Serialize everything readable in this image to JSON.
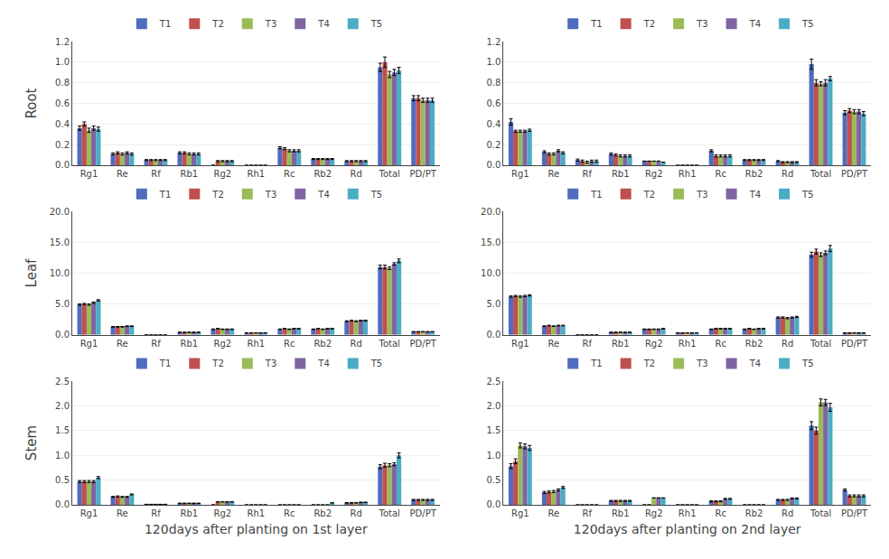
{
  "chart_data": [
    {
      "type": "bar",
      "categories": [
        "Rg1",
        "Re",
        "Rf",
        "Rb1",
        "Rg2",
        "Rh1",
        "Rc",
        "Rb2",
        "Rd",
        "Total",
        "PD/PT"
      ],
      "ylabel": "Root",
      "series": [
        {
          "name": "T1",
          "color": "#4f6cbe",
          "values": [
            0.36,
            0.11,
            0.05,
            0.12,
            0.0,
            0.0,
            0.17,
            0.06,
            0.04,
            0.95,
            0.65
          ],
          "errors": [
            0.02,
            0.01,
            0.005,
            0.01,
            0.0,
            0.0,
            0.01,
            0.005,
            0.005,
            0.04,
            0.025
          ]
        },
        {
          "name": "T2",
          "color": "#c0504d",
          "values": [
            0.4,
            0.12,
            0.05,
            0.12,
            0.04,
            0.0,
            0.16,
            0.06,
            0.04,
            1.0,
            0.65
          ],
          "errors": [
            0.02,
            0.01,
            0.005,
            0.01,
            0.005,
            0.0,
            0.01,
            0.005,
            0.005,
            0.05,
            0.025
          ]
        },
        {
          "name": "T3",
          "color": "#9bbb59",
          "values": [
            0.34,
            0.11,
            0.05,
            0.11,
            0.04,
            0.0,
            0.14,
            0.06,
            0.04,
            0.88,
            0.63
          ],
          "errors": [
            0.02,
            0.01,
            0.005,
            0.01,
            0.005,
            0.0,
            0.01,
            0.005,
            0.005,
            0.03,
            0.02
          ]
        },
        {
          "name": "T4",
          "color": "#8064a2",
          "values": [
            0.36,
            0.12,
            0.05,
            0.11,
            0.04,
            0.0,
            0.14,
            0.06,
            0.04,
            0.9,
            0.63
          ],
          "errors": [
            0.02,
            0.01,
            0.005,
            0.01,
            0.005,
            0.0,
            0.01,
            0.005,
            0.005,
            0.03,
            0.02
          ]
        },
        {
          "name": "T5",
          "color": "#4bacc6",
          "values": [
            0.35,
            0.11,
            0.05,
            0.11,
            0.04,
            0.0,
            0.14,
            0.06,
            0.04,
            0.92,
            0.63
          ],
          "errors": [
            0.02,
            0.01,
            0.005,
            0.01,
            0.005,
            0.0,
            0.01,
            0.005,
            0.005,
            0.03,
            0.02
          ]
        }
      ],
      "ylim": [
        0,
        1.2
      ],
      "yticks": [
        {
          "value": 0,
          "label": "0.0"
        },
        0.2,
        0.4,
        0.6,
        0.8,
        {
          "value": 1,
          "label": "1.0"
        },
        1.2
      ],
      "grid": true,
      "legend": "top"
    },
    {
      "type": "bar",
      "categories": [
        "Rg1",
        "Re",
        "Rf",
        "Rb1",
        "Rg2",
        "Rh1",
        "Rc",
        "Rb2",
        "Rd",
        "Total",
        "PD/PT"
      ],
      "series": [
        {
          "name": "T1",
          "color": "#4f6cbe",
          "values": [
            0.42,
            0.13,
            0.05,
            0.11,
            0.04,
            0.0,
            0.14,
            0.05,
            0.04,
            0.98,
            0.51
          ],
          "errors": [
            0.03,
            0.01,
            0.01,
            0.01,
            0.0,
            0.0,
            0.01,
            0.005,
            0.005,
            0.05,
            0.02
          ]
        },
        {
          "name": "T2",
          "color": "#c0504d",
          "values": [
            0.33,
            0.11,
            0.04,
            0.1,
            0.04,
            0.0,
            0.09,
            0.05,
            0.03,
            0.8,
            0.53
          ],
          "errors": [
            0.01,
            0.01,
            0.01,
            0.01,
            0.0,
            0.0,
            0.01,
            0.005,
            0.005,
            0.03,
            0.02
          ]
        },
        {
          "name": "T3",
          "color": "#9bbb59",
          "values": [
            0.33,
            0.11,
            0.03,
            0.09,
            0.04,
            0.0,
            0.09,
            0.05,
            0.03,
            0.79,
            0.52
          ],
          "errors": [
            0.01,
            0.01,
            0.01,
            0.01,
            0.0,
            0.0,
            0.01,
            0.005,
            0.005,
            0.02,
            0.02
          ]
        },
        {
          "name": "T4",
          "color": "#8064a2",
          "values": [
            0.33,
            0.14,
            0.04,
            0.09,
            0.04,
            0.0,
            0.09,
            0.05,
            0.03,
            0.8,
            0.52
          ],
          "errors": [
            0.01,
            0.01,
            0.01,
            0.01,
            0.0,
            0.0,
            0.01,
            0.005,
            0.005,
            0.03,
            0.02
          ]
        },
        {
          "name": "T5",
          "color": "#4bacc6",
          "values": [
            0.34,
            0.12,
            0.04,
            0.09,
            0.03,
            0.0,
            0.09,
            0.05,
            0.03,
            0.84,
            0.5
          ],
          "errors": [
            0.01,
            0.01,
            0.01,
            0.01,
            0.0,
            0.0,
            0.01,
            0.005,
            0.005,
            0.02,
            0.02
          ]
        }
      ],
      "ylim": [
        0,
        1.2
      ],
      "yticks": [
        {
          "value": 0,
          "label": "0.0"
        },
        0.2,
        0.4,
        0.6,
        0.8,
        {
          "value": 1,
          "label": "1.0"
        },
        1.2
      ],
      "grid": true,
      "legend": "top"
    },
    {
      "type": "bar",
      "categories": [
        "Rg1",
        "Re",
        "Rf",
        "Rb1",
        "Rg2",
        "Rh1",
        "Rc",
        "Rb2",
        "Rd",
        "Total",
        "PD/PT"
      ],
      "ylabel": "Leaf",
      "series": [
        {
          "name": "T1",
          "color": "#4f6cbe",
          "values": [
            4.9,
            1.3,
            0.0,
            0.4,
            0.9,
            0.3,
            0.9,
            0.9,
            2.2,
            11.0,
            0.5
          ],
          "errors": [
            0.1,
            0.05,
            0.0,
            0.03,
            0.05,
            0.02,
            0.05,
            0.05,
            0.08,
            0.3,
            0.02
          ]
        },
        {
          "name": "T2",
          "color": "#c0504d",
          "values": [
            5.0,
            1.3,
            0.0,
            0.4,
            1.0,
            0.3,
            1.0,
            1.0,
            2.3,
            11.0,
            0.5
          ],
          "errors": [
            0.1,
            0.05,
            0.0,
            0.03,
            0.05,
            0.02,
            0.05,
            0.05,
            0.08,
            0.3,
            0.02
          ]
        },
        {
          "name": "T3",
          "color": "#9bbb59",
          "values": [
            4.9,
            1.3,
            0.0,
            0.4,
            0.9,
            0.3,
            0.9,
            0.9,
            2.2,
            10.8,
            0.5
          ],
          "errors": [
            0.1,
            0.05,
            0.0,
            0.03,
            0.05,
            0.02,
            0.05,
            0.05,
            0.08,
            0.2,
            0.02
          ]
        },
        {
          "name": "T4",
          "color": "#8064a2",
          "values": [
            5.2,
            1.4,
            0.0,
            0.4,
            0.9,
            0.3,
            1.0,
            1.0,
            2.3,
            11.5,
            0.5
          ],
          "errors": [
            0.1,
            0.05,
            0.0,
            0.03,
            0.05,
            0.02,
            0.05,
            0.05,
            0.08,
            0.2,
            0.02
          ]
        },
        {
          "name": "T5",
          "color": "#4bacc6",
          "values": [
            5.6,
            1.4,
            0.0,
            0.4,
            0.9,
            0.3,
            1.0,
            1.0,
            2.3,
            12.0,
            0.5
          ],
          "errors": [
            0.1,
            0.05,
            0.0,
            0.03,
            0.05,
            0.02,
            0.05,
            0.05,
            0.08,
            0.3,
            0.02
          ]
        }
      ],
      "ylim": [
        0,
        20
      ],
      "yticks": [
        {
          "value": 0,
          "label": "0.0"
        },
        {
          "value": 5,
          "label": "5.0"
        },
        {
          "value": 10,
          "label": "10.0"
        },
        {
          "value": 15,
          "label": "15.0"
        },
        {
          "value": 20,
          "label": "20.0"
        }
      ],
      "grid": true,
      "legend": "top"
    },
    {
      "type": "bar",
      "categories": [
        "Rg1",
        "Re",
        "Rf",
        "Rb1",
        "Rg2",
        "Rh1",
        "Rc",
        "Rb2",
        "Rd",
        "Total",
        "PD/PT"
      ],
      "series": [
        {
          "name": "T1",
          "color": "#4f6cbe",
          "values": [
            6.2,
            1.4,
            0.0,
            0.4,
            0.9,
            0.3,
            0.9,
            0.9,
            2.8,
            13.0,
            0.3
          ],
          "errors": [
            0.1,
            0.05,
            0.0,
            0.03,
            0.05,
            0.02,
            0.05,
            0.05,
            0.1,
            0.4,
            0.02
          ]
        },
        {
          "name": "T2",
          "color": "#c0504d",
          "values": [
            6.3,
            1.5,
            0.0,
            0.4,
            0.9,
            0.3,
            1.0,
            1.0,
            2.8,
            13.5,
            0.3
          ],
          "errors": [
            0.1,
            0.05,
            0.0,
            0.03,
            0.05,
            0.02,
            0.05,
            0.05,
            0.1,
            0.4,
            0.02
          ]
        },
        {
          "name": "T3",
          "color": "#9bbb59",
          "values": [
            6.2,
            1.4,
            0.0,
            0.4,
            0.9,
            0.3,
            1.0,
            0.9,
            2.7,
            13.0,
            0.3
          ],
          "errors": [
            0.1,
            0.05,
            0.0,
            0.03,
            0.05,
            0.02,
            0.05,
            0.05,
            0.1,
            0.3,
            0.02
          ]
        },
        {
          "name": "T4",
          "color": "#8064a2",
          "values": [
            6.3,
            1.5,
            0.0,
            0.4,
            0.9,
            0.3,
            1.0,
            1.0,
            2.8,
            13.3,
            0.3
          ],
          "errors": [
            0.1,
            0.05,
            0.0,
            0.03,
            0.05,
            0.02,
            0.05,
            0.05,
            0.1,
            0.3,
            0.02
          ]
        },
        {
          "name": "T5",
          "color": "#4bacc6",
          "values": [
            6.4,
            1.5,
            0.0,
            0.4,
            1.0,
            0.3,
            1.0,
            1.0,
            2.9,
            14.0,
            0.3
          ],
          "errors": [
            0.1,
            0.05,
            0.0,
            0.03,
            0.05,
            0.02,
            0.05,
            0.05,
            0.1,
            0.5,
            0.02
          ]
        }
      ],
      "ylim": [
        0,
        20
      ],
      "yticks": [
        {
          "value": 0,
          "label": "0.0"
        },
        {
          "value": 5,
          "label": "5.0"
        },
        {
          "value": 10,
          "label": "10.0"
        },
        {
          "value": 15,
          "label": "15.0"
        },
        {
          "value": 20,
          "label": "20.0"
        }
      ],
      "grid": true,
      "legend": "top"
    },
    {
      "type": "bar",
      "categories": [
        "Rg1",
        "Re",
        "Rf",
        "Rb1",
        "Rg2",
        "Rh1",
        "Rc",
        "Rb2",
        "Rd",
        "Total",
        "PD/PT"
      ],
      "ylabel": "Stem",
      "xlabel": "120days after planting on 1st layer",
      "series": [
        {
          "name": "T1",
          "color": "#4f6cbe",
          "values": [
            0.47,
            0.16,
            0.01,
            0.03,
            0.0,
            0.0,
            0.0,
            0.0,
            0.04,
            0.77,
            0.1
          ],
          "errors": [
            0.02,
            0.01,
            0.0,
            0.005,
            0.0,
            0.0,
            0.0,
            0.0,
            0.005,
            0.04,
            0.01
          ]
        },
        {
          "name": "T2",
          "color": "#c0504d",
          "values": [
            0.47,
            0.17,
            0.01,
            0.03,
            0.06,
            0.0,
            0.0,
            0.0,
            0.04,
            0.8,
            0.1
          ],
          "errors": [
            0.02,
            0.01,
            0.0,
            0.005,
            0.0,
            0.0,
            0.0,
            0.0,
            0.005,
            0.04,
            0.01
          ]
        },
        {
          "name": "T3",
          "color": "#9bbb59",
          "values": [
            0.47,
            0.16,
            0.01,
            0.03,
            0.06,
            0.0,
            0.0,
            0.0,
            0.04,
            0.8,
            0.1
          ],
          "errors": [
            0.02,
            0.01,
            0.0,
            0.005,
            0.0,
            0.0,
            0.0,
            0.0,
            0.005,
            0.03,
            0.01
          ]
        },
        {
          "name": "T4",
          "color": "#8064a2",
          "values": [
            0.47,
            0.16,
            0.01,
            0.03,
            0.06,
            0.0,
            0.0,
            0.0,
            0.05,
            0.82,
            0.1
          ],
          "errors": [
            0.02,
            0.01,
            0.0,
            0.005,
            0.0,
            0.0,
            0.0,
            0.0,
            0.005,
            0.03,
            0.01
          ]
        },
        {
          "name": "T5",
          "color": "#4bacc6",
          "values": [
            0.55,
            0.21,
            0.01,
            0.03,
            0.06,
            0.0,
            0.0,
            0.04,
            0.05,
            1.0,
            0.1
          ],
          "errors": [
            0.02,
            0.01,
            0.0,
            0.005,
            0.0,
            0.0,
            0.0,
            0.0,
            0.005,
            0.05,
            0.01
          ]
        }
      ],
      "ylim": [
        0,
        2.5
      ],
      "yticks": [
        {
          "value": 0,
          "label": "0.0"
        },
        0.5,
        {
          "value": 1,
          "label": "1.0"
        },
        1.5,
        {
          "value": 2,
          "label": "2.0"
        },
        2.5
      ],
      "grid": true,
      "legend": "top"
    },
    {
      "type": "bar",
      "categories": [
        "Rg1",
        "Re",
        "Rf",
        "Rb1",
        "Rg2",
        "Rh1",
        "Rc",
        "Rb2",
        "Rd",
        "Total",
        "PD/PT"
      ],
      "xlabel": "120days after planting on 2nd layer",
      "series": [
        {
          "name": "T1",
          "color": "#4f6cbe",
          "values": [
            0.78,
            0.25,
            0.0,
            0.08,
            0.0,
            0.0,
            0.07,
            0.0,
            0.1,
            1.6,
            0.3
          ],
          "errors": [
            0.05,
            0.02,
            0.0,
            0.01,
            0.0,
            0.0,
            0.01,
            0.0,
            0.01,
            0.08,
            0.02
          ]
        },
        {
          "name": "T2",
          "color": "#c0504d",
          "values": [
            0.88,
            0.26,
            0.0,
            0.08,
            0.0,
            0.0,
            0.07,
            0.0,
            0.1,
            1.5,
            0.18
          ],
          "errors": [
            0.05,
            0.02,
            0.0,
            0.01,
            0.0,
            0.0,
            0.01,
            0.0,
            0.01,
            0.07,
            0.02
          ]
        },
        {
          "name": "T3",
          "color": "#9bbb59",
          "values": [
            1.2,
            0.27,
            0.0,
            0.08,
            0.14,
            0.0,
            0.07,
            0.0,
            0.1,
            2.07,
            0.18
          ],
          "errors": [
            0.05,
            0.02,
            0.0,
            0.01,
            0.0,
            0.0,
            0.01,
            0.0,
            0.01,
            0.07,
            0.02
          ]
        },
        {
          "name": "T4",
          "color": "#8064a2",
          "values": [
            1.18,
            0.3,
            0.0,
            0.08,
            0.14,
            0.0,
            0.12,
            0.0,
            0.13,
            2.07,
            0.18
          ],
          "errors": [
            0.05,
            0.02,
            0.0,
            0.01,
            0.0,
            0.0,
            0.01,
            0.0,
            0.01,
            0.06,
            0.02
          ]
        },
        {
          "name": "T5",
          "color": "#4bacc6",
          "values": [
            1.15,
            0.35,
            0.0,
            0.08,
            0.14,
            0.0,
            0.12,
            0.0,
            0.13,
            1.97,
            0.18
          ],
          "errors": [
            0.05,
            0.02,
            0.0,
            0.01,
            0.0,
            0.0,
            0.01,
            0.0,
            0.01,
            0.08,
            0.02
          ]
        }
      ],
      "ylim": [
        0,
        2.5
      ],
      "yticks": [
        {
          "value": 0,
          "label": "0.0"
        },
        0.5,
        {
          "value": 1,
          "label": "1.0"
        },
        1.5,
        {
          "value": 2,
          "label": "2.0"
        },
        2.5
      ],
      "grid": true,
      "legend": "top"
    }
  ]
}
